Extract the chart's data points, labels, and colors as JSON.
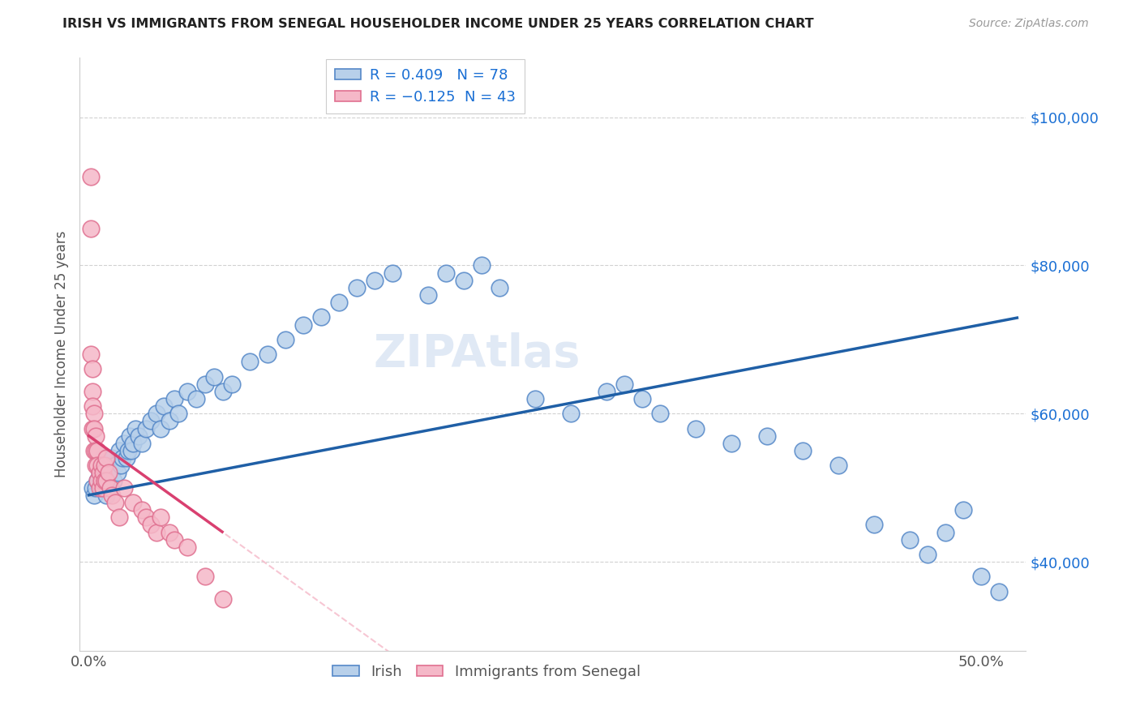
{
  "title": "IRISH VS IMMIGRANTS FROM SENEGAL HOUSEHOLDER INCOME UNDER 25 YEARS CORRELATION CHART",
  "source": "Source: ZipAtlas.com",
  "ylabel": "Householder Income Under 25 years",
  "xlim": [
    -0.005,
    0.525
  ],
  "ylim": [
    28000,
    108000
  ],
  "yticks": [
    40000,
    60000,
    80000,
    100000
  ],
  "ytick_labels": [
    "$40,000",
    "$60,000",
    "$80,000",
    "$100,000"
  ],
  "xtick_labels": [
    "0.0%",
    "",
    "",
    "",
    "",
    "50.0%"
  ],
  "irish_color": "#b8d0ea",
  "irish_edge_color": "#5588c8",
  "irish_line_color": "#1f5fa6",
  "senegal_color": "#f5b8c8",
  "senegal_edge_color": "#e07090",
  "senegal_line_color": "#d94070",
  "watermark": "ZIPAtlas",
  "background_color": "#ffffff",
  "grid_color": "#cccccc",
  "irish_x": [
    0.002,
    0.003,
    0.004,
    0.005,
    0.006,
    0.007,
    0.007,
    0.008,
    0.008,
    0.009,
    0.01,
    0.01,
    0.011,
    0.012,
    0.012,
    0.013,
    0.013,
    0.014,
    0.015,
    0.016,
    0.017,
    0.018,
    0.019,
    0.02,
    0.021,
    0.022,
    0.023,
    0.024,
    0.025,
    0.026,
    0.028,
    0.03,
    0.032,
    0.035,
    0.038,
    0.04,
    0.042,
    0.045,
    0.048,
    0.05,
    0.055,
    0.06,
    0.065,
    0.07,
    0.075,
    0.08,
    0.09,
    0.1,
    0.11,
    0.12,
    0.13,
    0.14,
    0.15,
    0.16,
    0.17,
    0.19,
    0.2,
    0.21,
    0.22,
    0.23,
    0.25,
    0.27,
    0.29,
    0.3,
    0.31,
    0.32,
    0.34,
    0.36,
    0.38,
    0.4,
    0.42,
    0.44,
    0.46,
    0.47,
    0.48,
    0.49,
    0.5,
    0.51
  ],
  "irish_y": [
    50000,
    49000,
    50000,
    51000,
    52000,
    50000,
    53000,
    51000,
    54000,
    50000,
    52000,
    49000,
    51000,
    53000,
    50000,
    52000,
    54000,
    51000,
    53000,
    52000,
    55000,
    53000,
    54000,
    56000,
    54000,
    55000,
    57000,
    55000,
    56000,
    58000,
    57000,
    56000,
    58000,
    59000,
    60000,
    58000,
    61000,
    59000,
    62000,
    60000,
    63000,
    62000,
    64000,
    65000,
    63000,
    64000,
    67000,
    68000,
    70000,
    72000,
    73000,
    75000,
    77000,
    78000,
    79000,
    76000,
    79000,
    78000,
    80000,
    77000,
    62000,
    60000,
    63000,
    64000,
    62000,
    60000,
    58000,
    56000,
    57000,
    55000,
    53000,
    45000,
    43000,
    41000,
    44000,
    47000,
    38000,
    36000
  ],
  "senegal_x": [
    0.001,
    0.001,
    0.001,
    0.002,
    0.002,
    0.002,
    0.002,
    0.003,
    0.003,
    0.003,
    0.004,
    0.004,
    0.004,
    0.005,
    0.005,
    0.005,
    0.006,
    0.006,
    0.007,
    0.007,
    0.008,
    0.008,
    0.009,
    0.009,
    0.01,
    0.01,
    0.011,
    0.012,
    0.013,
    0.015,
    0.017,
    0.02,
    0.025,
    0.03,
    0.032,
    0.035,
    0.038,
    0.04,
    0.045,
    0.048,
    0.055,
    0.065,
    0.075
  ],
  "senegal_y": [
    92000,
    85000,
    68000,
    66000,
    63000,
    61000,
    58000,
    60000,
    58000,
    55000,
    57000,
    55000,
    53000,
    55000,
    53000,
    51000,
    52000,
    50000,
    53000,
    51000,
    52000,
    50000,
    53000,
    51000,
    54000,
    51000,
    52000,
    50000,
    49000,
    48000,
    46000,
    50000,
    48000,
    47000,
    46000,
    45000,
    44000,
    46000,
    44000,
    43000,
    42000,
    38000,
    35000
  ]
}
